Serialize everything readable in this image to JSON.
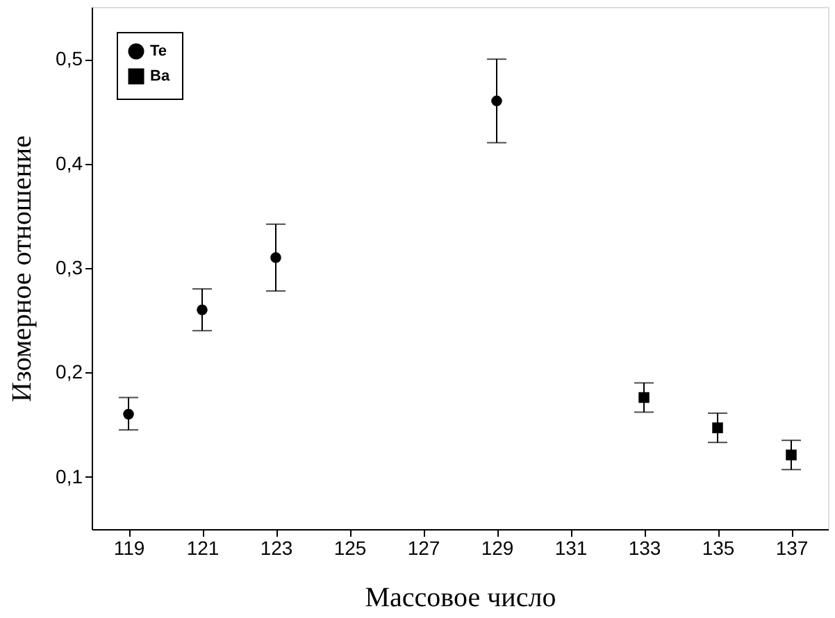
{
  "chart_data": {
    "type": "scatter",
    "xlabel": "Массовое число",
    "ylabel": "Изомерное отношение",
    "xlim": [
      118,
      138
    ],
    "xticks": [
      119,
      121,
      123,
      125,
      127,
      129,
      131,
      133,
      135,
      137
    ],
    "ylim": [
      0.05,
      0.55
    ],
    "yticks": [
      {
        "value": 0.1,
        "label": "0,1"
      },
      {
        "value": 0.2,
        "label": "0,2"
      },
      {
        "value": 0.3,
        "label": "0,3"
      },
      {
        "value": 0.4,
        "label": "0,4"
      },
      {
        "value": 0.5,
        "label": "0,5"
      }
    ],
    "grid": false,
    "legend": "top left",
    "series": [
      {
        "name": "Te",
        "color": "#000000",
        "marker": "circle",
        "x": [
          119,
          121,
          123,
          129
        ],
        "values": [
          0.16,
          0.26,
          0.31,
          0.46
        ],
        "errors": [
          [
            0.145,
            0.176
          ],
          [
            0.24,
            0.28
          ],
          [
            0.278,
            0.342
          ],
          [
            0.42,
            0.5
          ]
        ]
      },
      {
        "name": "Ba",
        "color": "#000000",
        "marker": "square",
        "x": [
          133,
          135,
          137
        ],
        "values": [
          0.176,
          0.147,
          0.121
        ],
        "errors": [
          [
            0.162,
            0.19
          ],
          [
            0.133,
            0.161
          ],
          [
            0.107,
            0.135
          ]
        ]
      }
    ]
  }
}
